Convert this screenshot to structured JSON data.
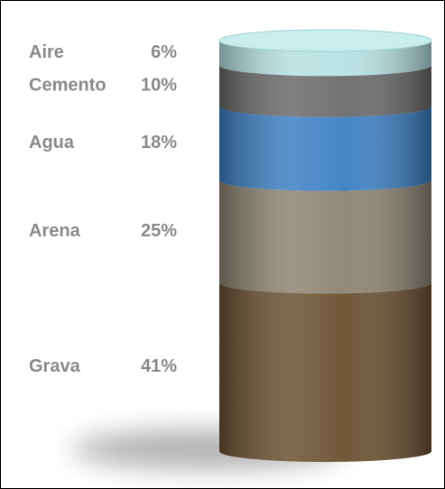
{
  "chart_data": {
    "type": "stacked-cylinder",
    "categories": [
      "Aire",
      "Cemento",
      "Agua",
      "Arena",
      "Grava"
    ],
    "values": [
      6,
      10,
      18,
      25,
      41
    ],
    "value_labels": [
      "6%",
      "10%",
      "18%",
      "25%",
      "41%"
    ],
    "colors": [
      "#a9dcdc",
      "#6a6a6a",
      "#3b7fc4",
      "#8b8473",
      "#6a4f2e"
    ]
  }
}
